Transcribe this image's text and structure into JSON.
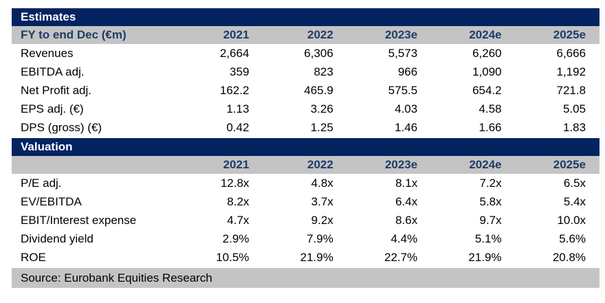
{
  "colors": {
    "navy": "#032361",
    "year_text_navy": "#1e3c69",
    "gray": "#c4c4c4",
    "body_text": "#000000",
    "section_text": "#ffffff"
  },
  "estimates": {
    "section_title": "Estimates",
    "header_label": "FY to end Dec (€m)",
    "years": [
      "2021",
      "2022",
      "2023e",
      "2024e",
      "2025e"
    ],
    "rows": [
      {
        "label": "Revenues",
        "values": [
          "2,664",
          "6,306",
          "5,573",
          "6,260",
          "6,666"
        ]
      },
      {
        "label": "EBITDA adj.",
        "values": [
          "359",
          "823",
          "966",
          "1,090",
          "1,192"
        ]
      },
      {
        "label": "Net Profit adj.",
        "values": [
          "162.2",
          "465.9",
          "575.5",
          "654.2",
          "721.8"
        ]
      },
      {
        "label": "EPS adj. (€)",
        "values": [
          "1.13",
          "3.26",
          "4.03",
          "4.58",
          "5.05"
        ]
      },
      {
        "label": "DPS (gross) (€)",
        "values": [
          "0.42",
          "1.25",
          "1.46",
          "1.66",
          "1.83"
        ]
      }
    ]
  },
  "valuation": {
    "section_title": "Valuation",
    "header_label": "",
    "years": [
      "2021",
      "2022",
      "2023e",
      "2024e",
      "2025e"
    ],
    "rows": [
      {
        "label": "P/E adj.",
        "values": [
          "12.8x",
          "4.8x",
          "8.1x",
          "7.2x",
          "6.5x"
        ]
      },
      {
        "label": "EV/EBITDA",
        "values": [
          "8.2x",
          "3.7x",
          "6.4x",
          "5.8x",
          "5.4x"
        ]
      },
      {
        "label": "EBIT/Interest expense",
        "values": [
          "4.7x",
          "9.2x",
          "8.6x",
          "9.7x",
          "10.0x"
        ]
      },
      {
        "label": "Dividend yield",
        "values": [
          "2.9%",
          "7.9%",
          "4.4%",
          "5.1%",
          "5.6%"
        ]
      },
      {
        "label": "ROE",
        "values": [
          "10.5%",
          "21.9%",
          "22.7%",
          "21.9%",
          "20.8%"
        ]
      }
    ]
  },
  "footer": {
    "source": "Source: Eurobank Equities Research"
  }
}
